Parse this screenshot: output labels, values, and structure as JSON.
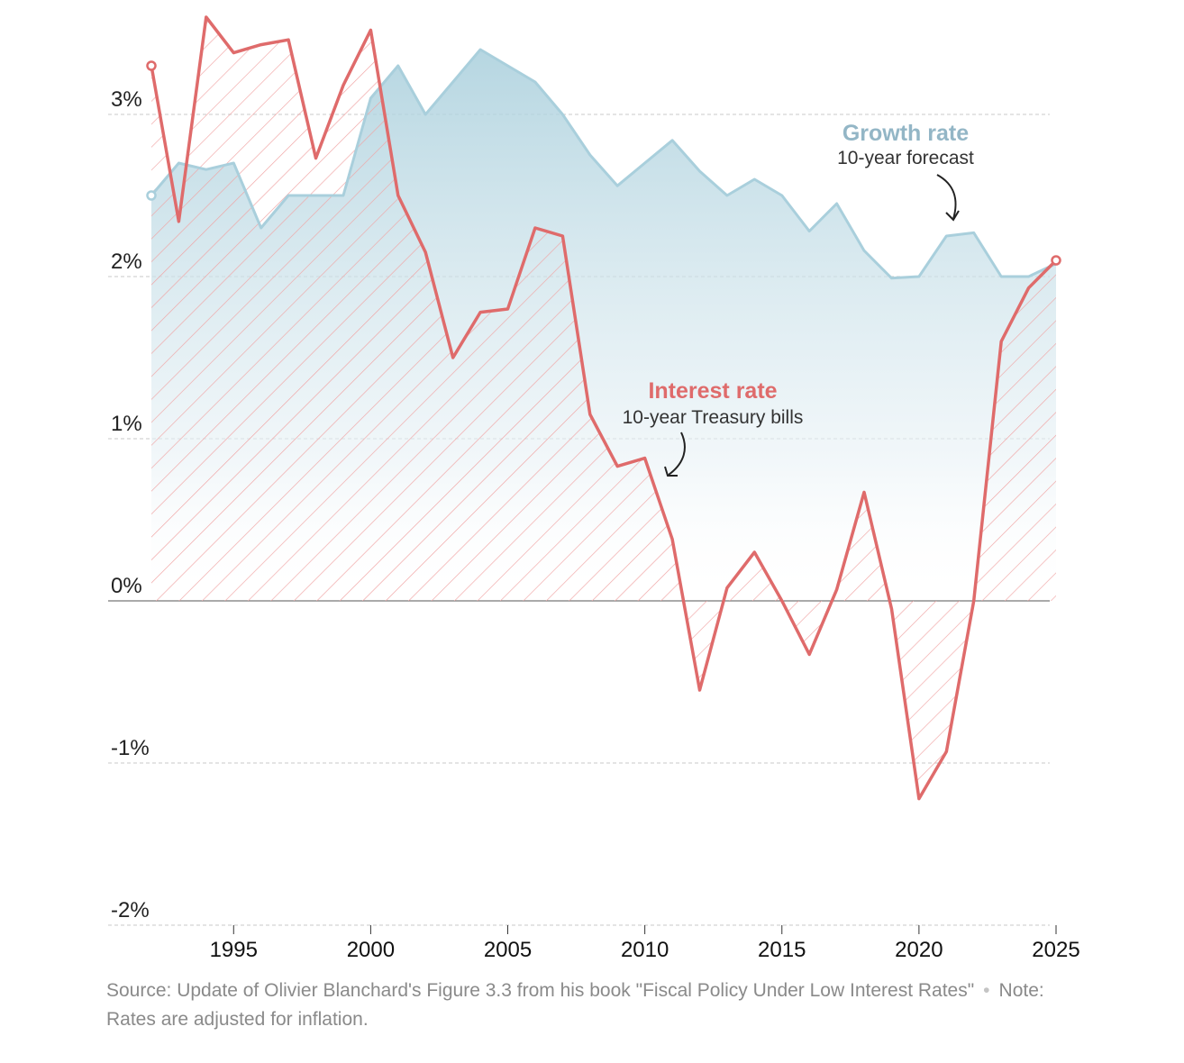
{
  "chart_data": {
    "type": "line",
    "title": "",
    "xlabel": "",
    "ylabel": "",
    "xlim": [
      1991.5,
      2025.5
    ],
    "ylim": [
      -2,
      3.5
    ],
    "y_ticks": [
      3,
      2,
      1,
      0,
      -1,
      -2
    ],
    "y_tick_labels": [
      "3%",
      "2%",
      "1%",
      "0%",
      "-1%",
      "-2%"
    ],
    "x_ticks": [
      1995,
      2000,
      2005,
      2010,
      2015,
      2020,
      2025
    ],
    "x_tick_labels": [
      "1995",
      "2000",
      "2005",
      "2010",
      "2015",
      "2020",
      "2025"
    ],
    "grid": true,
    "x": [
      1992,
      1993,
      1994,
      1995,
      1996,
      1997,
      1998,
      1999,
      2000,
      2001,
      2002,
      2003,
      2004,
      2005,
      2006,
      2007,
      2008,
      2009,
      2010,
      2011,
      2012,
      2013,
      2014,
      2015,
      2016,
      2017,
      2018,
      2019,
      2020,
      2021,
      2022,
      2023,
      2024,
      2025
    ],
    "series": [
      {
        "name": "Growth rate",
        "subtitle": "10-year forecast",
        "color": "#a9cfdc",
        "style": "area",
        "values": [
          2.5,
          2.7,
          2.66,
          2.7,
          2.3,
          2.5,
          2.5,
          2.5,
          3.1,
          3.3,
          3.0,
          3.2,
          3.4,
          3.3,
          3.2,
          3.0,
          2.75,
          2.56,
          2.7,
          2.84,
          2.65,
          2.5,
          2.6,
          2.5,
          2.28,
          2.45,
          2.16,
          1.99,
          2.0,
          2.25,
          2.27,
          2.0,
          2.0,
          2.08
        ]
      },
      {
        "name": "Interest rate",
        "subtitle": "10-year Treasury bills",
        "color": "#df6b6b",
        "style": "line",
        "values": [
          3.3,
          2.34,
          3.6,
          3.38,
          3.43,
          3.46,
          2.73,
          3.18,
          3.52,
          2.5,
          2.15,
          1.5,
          1.78,
          1.8,
          2.3,
          2.25,
          1.15,
          0.83,
          0.88,
          0.38,
          -0.55,
          0.08,
          0.3,
          0.0,
          -0.33,
          0.07,
          0.67,
          -0.05,
          -1.22,
          -0.93,
          0.0,
          1.6,
          1.93,
          2.1
        ]
      }
    ]
  },
  "annotations": {
    "growth_title": "Growth rate",
    "growth_sub": "10-year forecast",
    "interest_title": "Interest rate",
    "interest_sub": "10-year Treasury bills"
  },
  "footer": {
    "source": "Source: Update of Olivier Blanchard's Figure 3.3 from his book \"Fiscal Policy Under Low Interest Rates\"",
    "note": "Note: Rates are adjusted for inflation."
  }
}
